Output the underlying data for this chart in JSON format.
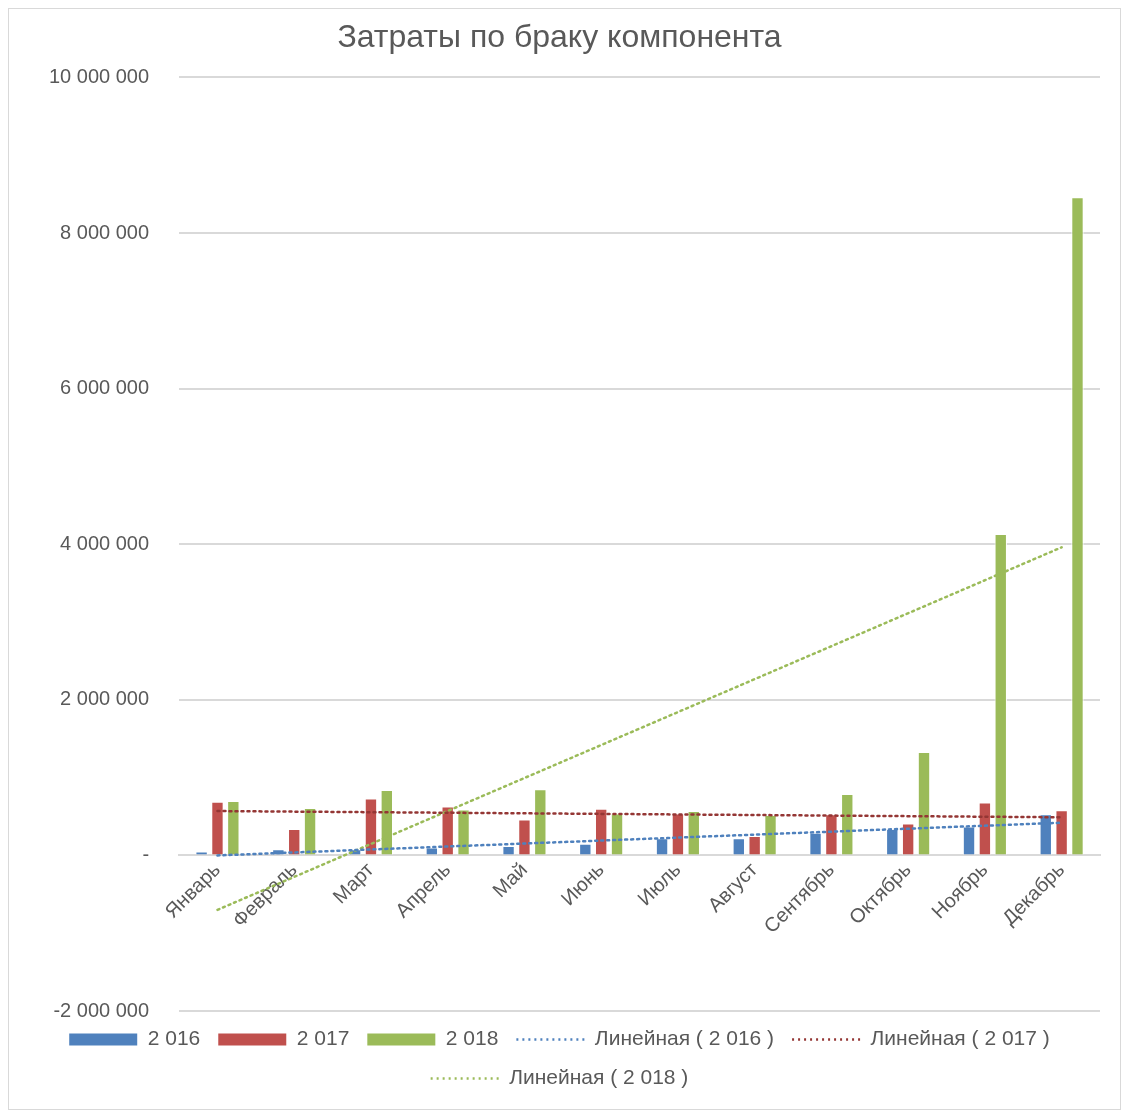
{
  "chart_data": {
    "type": "bar",
    "title": "Затраты по браку компонента",
    "categories": [
      "Январь",
      "Февраль",
      "Март",
      "Апрель",
      "Май",
      "Июнь",
      "Июль",
      "Август",
      "Сентябрь",
      "Октябрь",
      "Ноябрь",
      "Декабрь"
    ],
    "series": [
      {
        "name": "2 016",
        "color": "#4f81bd",
        "values": [
          50000,
          80000,
          80000,
          100000,
          120000,
          150000,
          220000,
          220000,
          290000,
          340000,
          370000,
          530000
        ]
      },
      {
        "name": "2 017",
        "color": "#c0504d",
        "values": [
          690000,
          340000,
          730000,
          630000,
          460000,
          600000,
          540000,
          250000,
          530000,
          410000,
          680000,
          580000
        ]
      },
      {
        "name": "2 018",
        "color": "#9bbb59",
        "values": [
          700000,
          610000,
          840000,
          590000,
          850000,
          540000,
          570000,
          520000,
          790000,
          1330000,
          4130000,
          8460000
        ]
      },
      {
        "name": "Линейная ( 2 016 )",
        "type": "line",
        "line_style": "dotted",
        "color": "#4f81bd",
        "x": [
          "Январь",
          "Декабрь"
        ],
        "values": [
          0,
          420000
        ]
      },
      {
        "name": "Линейная ( 2 017 )",
        "type": "line",
        "line_style": "dotted",
        "color": "#943634",
        "x": [
          "Январь",
          "Декабрь"
        ],
        "values": [
          570000,
          490000
        ]
      },
      {
        "name": "Линейная ( 2 018 )",
        "type": "line",
        "line_style": "dotted",
        "color": "#9bbb59",
        "x": [
          "Январь",
          "Декабрь"
        ],
        "values": [
          -700000,
          3960000
        ]
      }
    ],
    "ylim": [
      -2000000,
      10000000
    ],
    "yticks": [
      {
        "value": -2000000,
        "label": "-2 000 000"
      },
      {
        "value": 0,
        "label": "-"
      },
      {
        "value": 2000000,
        "label": "2 000 000"
      },
      {
        "value": 4000000,
        "label": "4 000 000"
      },
      {
        "value": 6000000,
        "label": "6 000 000"
      },
      {
        "value": 8000000,
        "label": "8 000 000"
      },
      {
        "value": 10000000,
        "label": "10 000 000"
      }
    ],
    "grid": "y",
    "legend": "bottom"
  }
}
